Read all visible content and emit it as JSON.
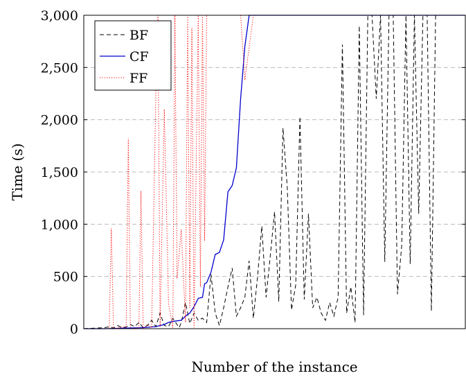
{
  "chart_data": {
    "type": "line",
    "title": "",
    "xlabel": "Number of the instance",
    "ylabel": "Time (s)",
    "xlim": [
      0,
      180
    ],
    "ylim": [
      0,
      3000
    ],
    "yticks": [
      0,
      500,
      1000,
      1500,
      2000,
      2500,
      3000
    ],
    "ytick_labels": [
      "0",
      "500",
      "1,000",
      "1,500",
      "2,000",
      "2,500",
      "3,000"
    ],
    "grid": "y-dashed",
    "legend": "top-left",
    "series": [
      {
        "name": "BF",
        "color": "#000000",
        "style": "dashed",
        "x": [
          0,
          5,
          10,
          12,
          14,
          16,
          18,
          20,
          22,
          24,
          26,
          28,
          30,
          32,
          34,
          36,
          38,
          40,
          42,
          44,
          45,
          46,
          48,
          50,
          52,
          54,
          56,
          58,
          60,
          62,
          64,
          66,
          68,
          70,
          72,
          74,
          76,
          78,
          80,
          82,
          84,
          86,
          88,
          90,
          92,
          94,
          96,
          98,
          100,
          102,
          104,
          106,
          108,
          110,
          112,
          114,
          116,
          118,
          120,
          122,
          124,
          126,
          128,
          130,
          132,
          134,
          136,
          138,
          140,
          142,
          144,
          146,
          148,
          150,
          152,
          154,
          156,
          158,
          160,
          162,
          164,
          166,
          168,
          170,
          172,
          174,
          176,
          178,
          180
        ],
        "y": [
          0,
          5,
          10,
          20,
          5,
          30,
          10,
          15,
          40,
          20,
          60,
          10,
          30,
          80,
          20,
          150,
          30,
          20,
          100,
          40,
          10,
          60,
          250,
          50,
          150,
          80,
          100,
          60,
          520,
          150,
          30,
          200,
          400,
          580,
          120,
          200,
          300,
          650,
          100,
          500,
          980,
          300,
          700,
          1120,
          260,
          1920,
          1350,
          180,
          420,
          2030,
          280,
          1100,
          200,
          300,
          150,
          80,
          250,
          120,
          300,
          2720,
          150,
          400,
          60,
          2900,
          130,
          3000,
          3000,
          2200,
          3000,
          640,
          3000,
          3000,
          330,
          800,
          3000,
          620,
          3000,
          1100,
          3000,
          3000,
          170,
          3000,
          3000,
          3000,
          3000,
          3000,
          3000,
          3000,
          3000
        ]
      },
      {
        "name": "CF",
        "color": "#0000cc",
        "style": "solid",
        "x": [
          0,
          10,
          20,
          28,
          34,
          38,
          40,
          42,
          46,
          48,
          50,
          52,
          54,
          56,
          57,
          58,
          60,
          62,
          64,
          66,
          68,
          70,
          72,
          74,
          76,
          78,
          80,
          82,
          90,
          100,
          110,
          120,
          130,
          140,
          150,
          160,
          170,
          180
        ],
        "y": [
          0,
          0,
          5,
          10,
          20,
          40,
          60,
          70,
          80,
          120,
          150,
          210,
          290,
          300,
          430,
          440,
          540,
          710,
          730,
          850,
          1310,
          1370,
          1540,
          2200,
          2700,
          3000,
          3000,
          3000,
          3000,
          3000,
          3000,
          3000,
          3000,
          3000,
          3000,
          3000,
          3000,
          3000
        ]
      },
      {
        "name": "FF",
        "color": "#ff0000",
        "style": "dotted",
        "x": [
          0,
          12,
          13,
          14,
          20,
          21,
          22,
          26,
          27,
          28,
          30,
          32,
          34,
          35,
          36,
          38,
          40,
          42,
          43,
          44,
          46,
          48,
          49,
          50,
          51,
          52,
          54,
          55,
          56,
          57,
          58,
          59,
          60,
          62,
          63,
          64,
          66,
          68,
          70,
          72,
          74,
          75,
          76,
          80
        ],
        "y": [
          0,
          0,
          960,
          0,
          20,
          1820,
          0,
          10,
          1320,
          0,
          40,
          10,
          2260,
          3000,
          20,
          2100,
          240,
          10,
          3000,
          480,
          950,
          60,
          3000,
          200,
          2880,
          10,
          3000,
          400,
          3000,
          840,
          3000,
          3000,
          3000,
          3000,
          3000,
          3000,
          3000,
          3000,
          3000,
          3000,
          3000,
          2700,
          2380,
          3000
        ]
      }
    ]
  }
}
